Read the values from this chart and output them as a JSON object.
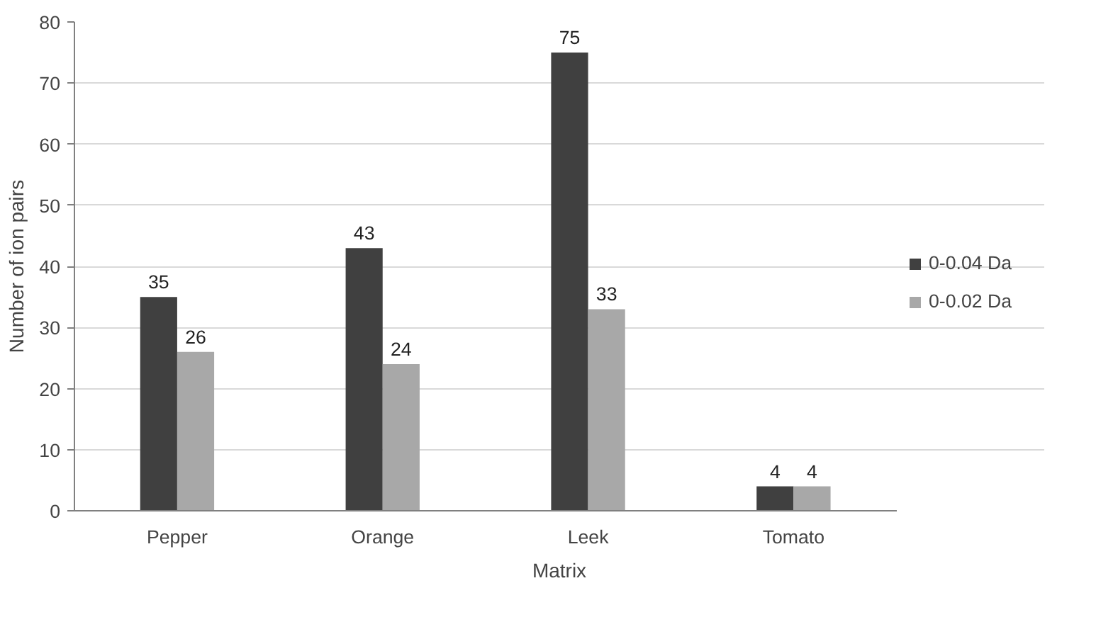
{
  "chart_data": {
    "type": "bar",
    "xlabel": "Matrix",
    "ylabel": "Number of ion pairs",
    "categories": [
      "Pepper",
      "Orange",
      "Leek",
      "Tomato"
    ],
    "series": [
      {
        "name": "0-0.04 Da",
        "color": "#404040",
        "values": [
          35,
          43,
          75,
          4
        ]
      },
      {
        "name": "0-0.02 Da",
        "color": "#a8a8a8",
        "values": [
          26,
          24,
          33,
          4
        ]
      }
    ],
    "ylim": [
      0,
      80
    ],
    "yticks": [
      0,
      10,
      20,
      30,
      40,
      50,
      60,
      70,
      80
    ],
    "grid": "y",
    "legend": "right",
    "data_labels": true
  }
}
